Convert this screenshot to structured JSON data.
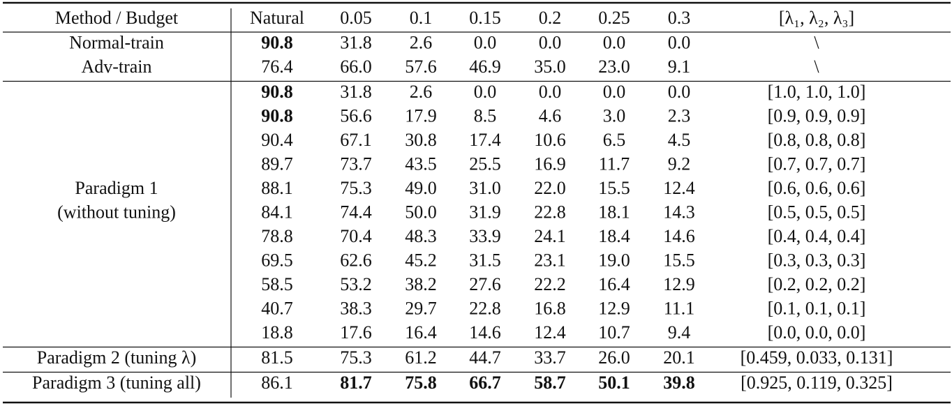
{
  "table": {
    "header": [
      "Method / Budget",
      "Natural",
      "0.05",
      "0.1",
      "0.15",
      "0.2",
      "0.25",
      "0.3",
      "[λ₁, λ₂, λ₃]"
    ],
    "sections": [
      {
        "rows": [
          {
            "method": "Normal-train",
            "values": [
              {
                "text": "90.8",
                "bold": true
              },
              "31.8",
              "2.6",
              "0.0",
              "0.0",
              "0.0",
              "0.0"
            ],
            "lambda": "\\"
          },
          {
            "method": "Adv-train",
            "values": [
              "76.4",
              "66.0",
              "57.6",
              "46.9",
              "35.0",
              "23.0",
              "9.1"
            ],
            "lambda": "\\"
          }
        ]
      },
      {
        "method": [
          "Paradigm 1",
          "(without tuning)"
        ],
        "rows": [
          {
            "values": [
              {
                "text": "90.8",
                "bold": true
              },
              "31.8",
              "2.6",
              "0.0",
              "0.0",
              "0.0",
              "0.0"
            ],
            "lambda": "[1.0, 1.0, 1.0]"
          },
          {
            "values": [
              {
                "text": "90.8",
                "bold": true
              },
              "56.6",
              "17.9",
              "8.5",
              "4.6",
              "3.0",
              "2.3"
            ],
            "lambda": "[0.9, 0.9, 0.9]"
          },
          {
            "values": [
              "90.4",
              "67.1",
              "30.8",
              "17.4",
              "10.6",
              "6.5",
              "4.5"
            ],
            "lambda": "[0.8, 0.8, 0.8]"
          },
          {
            "values": [
              "89.7",
              "73.7",
              "43.5",
              "25.5",
              "16.9",
              "11.7",
              "9.2"
            ],
            "lambda": "[0.7, 0.7, 0.7]"
          },
          {
            "values": [
              "88.1",
              "75.3",
              "49.0",
              "31.0",
              "22.0",
              "15.5",
              "12.4"
            ],
            "lambda": "[0.6, 0.6, 0.6]"
          },
          {
            "values": [
              "84.1",
              "74.4",
              "50.0",
              "31.9",
              "22.8",
              "18.1",
              "14.3"
            ],
            "lambda": "[0.5, 0.5, 0.5]"
          },
          {
            "values": [
              "78.8",
              "70.4",
              "48.3",
              "33.9",
              "24.1",
              "18.4",
              "14.6"
            ],
            "lambda": "[0.4, 0.4, 0.4]"
          },
          {
            "values": [
              "69.5",
              "62.6",
              "45.2",
              "31.5",
              "23.1",
              "19.0",
              "15.5"
            ],
            "lambda": "[0.3, 0.3, 0.3]"
          },
          {
            "values": [
              "58.5",
              "53.2",
              "38.2",
              "27.6",
              "22.2",
              "16.4",
              "12.9"
            ],
            "lambda": "[0.2, 0.2, 0.2]"
          },
          {
            "values": [
              "40.7",
              "38.3",
              "29.7",
              "22.8",
              "16.8",
              "12.9",
              "11.1"
            ],
            "lambda": "[0.1, 0.1, 0.1]"
          },
          {
            "values": [
              "18.8",
              "17.6",
              "16.4",
              "14.6",
              "12.4",
              "10.7",
              "9.4"
            ],
            "lambda": "[0.0, 0.0, 0.0]"
          }
        ]
      },
      {
        "rows": [
          {
            "method": "Paradigm 2 (tuning λ)",
            "values": [
              "81.5",
              "75.3",
              "61.2",
              "44.7",
              "33.7",
              "26.0",
              "20.1"
            ],
            "lambda": "[0.459, 0.033, 0.131]"
          }
        ]
      },
      {
        "rows": [
          {
            "method": "Paradigm 3 (tuning all)",
            "values": [
              "86.1",
              {
                "text": "81.7",
                "bold": true
              },
              {
                "text": "75.8",
                "bold": true
              },
              {
                "text": "66.7",
                "bold": true
              },
              {
                "text": "58.7",
                "bold": true
              },
              {
                "text": "50.1",
                "bold": true
              },
              {
                "text": "39.8",
                "bold": true
              }
            ],
            "lambda": "[0.925, 0.119, 0.325]"
          }
        ]
      }
    ]
  }
}
